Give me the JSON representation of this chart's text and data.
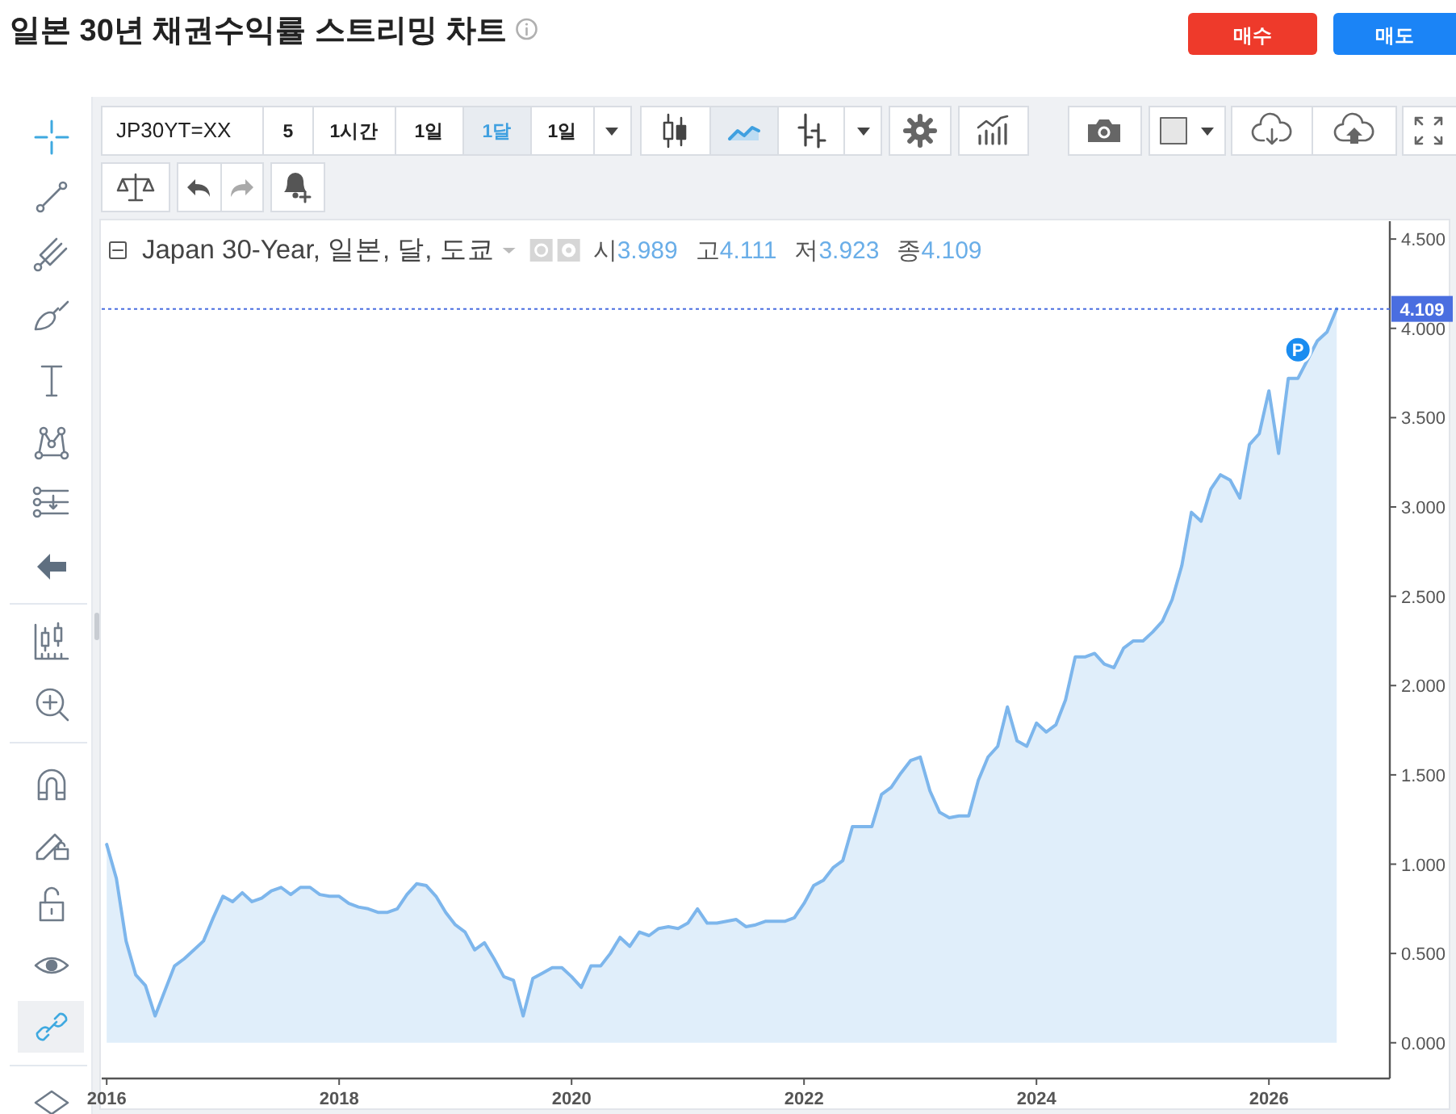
{
  "chart_data": {
    "type": "area",
    "title": "일본 30년 채권수익률 스트리밍 차트",
    "subtitle": "Japan 30-Year, 일본, 달, 도쿄",
    "series": [
      {
        "color": "#7db6ec",
        "x": [
          "2016-01",
          "2016-02",
          "2016-03",
          "2016-04",
          "2016-05",
          "2016-06",
          "2016-07",
          "2016-08",
          "2016-09",
          "2016-10",
          "2016-11",
          "2016-12",
          "2017-01",
          "2017-02",
          "2017-03",
          "2017-04",
          "2017-05",
          "2017-06",
          "2017-07",
          "2017-08",
          "2017-09",
          "2017-10",
          "2017-11",
          "2017-12",
          "2018-01",
          "2018-02",
          "2018-03",
          "2018-04",
          "2018-05",
          "2018-06",
          "2018-07",
          "2018-08",
          "2018-09",
          "2018-10",
          "2018-11",
          "2018-12",
          "2019-01",
          "2019-02",
          "2019-03",
          "2019-04",
          "2019-05",
          "2019-06",
          "2019-07",
          "2019-08",
          "2019-09",
          "2019-10",
          "2019-11",
          "2019-12",
          "2020-01",
          "2020-02",
          "2020-03",
          "2020-04",
          "2020-05",
          "2020-06",
          "2020-07",
          "2020-08",
          "2020-09",
          "2020-10",
          "2020-11",
          "2020-12",
          "2021-01",
          "2021-02",
          "2021-03",
          "2021-04",
          "2021-05",
          "2021-06",
          "2021-07",
          "2021-08",
          "2021-09",
          "2021-10",
          "2021-11",
          "2021-12",
          "2022-01",
          "2022-02",
          "2022-03",
          "2022-04",
          "2022-05",
          "2022-06",
          "2022-07",
          "2022-08",
          "2022-09",
          "2022-10",
          "2022-11",
          "2022-12",
          "2023-01",
          "2023-02",
          "2023-03",
          "2023-04",
          "2023-05",
          "2023-06",
          "2023-07",
          "2023-08",
          "2023-09",
          "2023-10",
          "2023-11",
          "2023-12",
          "2024-01",
          "2024-02",
          "2024-03",
          "2024-04",
          "2024-05",
          "2024-06",
          "2024-07",
          "2024-08",
          "2024-09",
          "2024-10",
          "2024-11",
          "2024-12",
          "2025-01",
          "2025-02",
          "2025-03",
          "2025-04",
          "2025-05",
          "2025-06",
          "2025-07",
          "2025-08",
          "2025-09",
          "2025-10",
          "2025-11",
          "2025-12",
          "2026-01",
          "2026-02",
          "2026-03",
          "2026-04",
          "2026-06",
          "2026-07",
          "2026-08"
        ],
        "values": [
          1.11,
          0.92,
          0.57,
          0.38,
          0.32,
          0.15,
          0.29,
          0.43,
          0.47,
          0.52,
          0.57,
          0.7,
          0.82,
          0.79,
          0.84,
          0.79,
          0.81,
          0.85,
          0.87,
          0.83,
          0.87,
          0.87,
          0.83,
          0.82,
          0.82,
          0.78,
          0.76,
          0.75,
          0.73,
          0.73,
          0.75,
          0.83,
          0.89,
          0.88,
          0.82,
          0.73,
          0.66,
          0.62,
          0.52,
          0.56,
          0.47,
          0.37,
          0.35,
          0.15,
          0.36,
          0.39,
          0.42,
          0.42,
          0.37,
          0.31,
          0.43,
          0.43,
          0.5,
          0.59,
          0.54,
          0.62,
          0.6,
          0.64,
          0.65,
          0.64,
          0.67,
          0.75,
          0.67,
          0.67,
          0.68,
          0.69,
          0.65,
          0.66,
          0.68,
          0.68,
          0.68,
          0.7,
          0.78,
          0.88,
          0.91,
          0.98,
          1.02,
          1.21,
          1.21,
          1.21,
          1.39,
          1.43,
          1.51,
          1.58,
          1.6,
          1.41,
          1.29,
          1.26,
          1.27,
          1.27,
          1.47,
          1.6,
          1.66,
          1.88,
          1.69,
          1.66,
          1.79,
          1.74,
          1.78,
          1.92,
          2.16,
          2.16,
          2.18,
          2.12,
          2.1,
          2.21,
          2.25,
          2.25,
          2.3,
          2.36,
          2.48,
          2.67,
          2.97,
          2.92,
          3.1,
          3.18,
          3.15,
          3.05,
          3.35,
          3.41,
          3.65,
          3.3,
          3.72,
          3.72,
          3.93,
          3.98,
          4.109
        ]
      }
    ],
    "xlim": [
      "2015-12-16",
      "2027-01-16"
    ],
    "xticks": [
      "2016",
      "2018",
      "2020",
      "2022",
      "2024",
      "2026"
    ],
    "ylim": [
      -0.2,
      4.6
    ],
    "yticks": [
      {
        "value": 0,
        "label": "0.000"
      },
      {
        "value": 0.5,
        "label": "0.500"
      },
      {
        "value": 1,
        "label": "1.000"
      },
      {
        "value": 1.5,
        "label": "1.500"
      },
      {
        "value": 2,
        "label": "2.000"
      },
      {
        "value": 2.5,
        "label": "2.500"
      },
      {
        "value": 3,
        "label": "3.000"
      },
      {
        "value": 3.5,
        "label": "3.500"
      },
      {
        "value": 4,
        "label": "4.000"
      },
      {
        "value": 4.5,
        "label": "4.500"
      }
    ],
    "ref_lines": [
      {
        "axis": "y",
        "value": 4.109,
        "label": "4.109",
        "color": "#4a6ee0",
        "line_style": "dotted"
      }
    ],
    "annotations": [
      "JP30YT=XX",
      "5",
      "1시간",
      "1일",
      "1달",
      "1일",
      "매수",
      "매도",
      "시3.989",
      "고4.111",
      "저3.923",
      "종4.109",
      {
        "text": "P",
        "x": "2026-04",
        "y": 3.88
      }
    ],
    "line_style": "solid"
  }
}
